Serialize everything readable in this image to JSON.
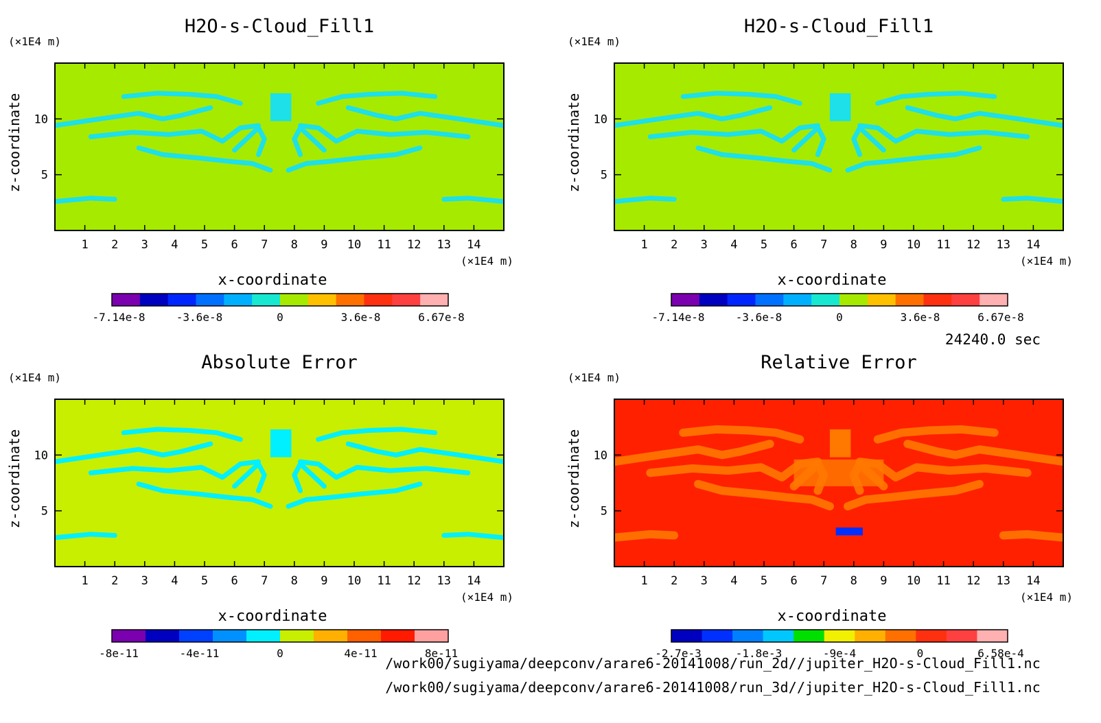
{
  "chart_data": [
    {
      "type": "heatmap",
      "title": "H2O-s-Cloud_Fill1",
      "xlabel": "x-coordinate",
      "ylabel": "z-coordinate",
      "xunit": "(×1E4 m)",
      "yunit": "(×1E4 m)",
      "xlim": [
        0,
        15
      ],
      "ylim": [
        0,
        15
      ],
      "xticks": [
        "1",
        "2",
        "3",
        "4",
        "5",
        "6",
        "7",
        "8",
        "9",
        "10",
        "11",
        "12",
        "13",
        "14"
      ],
      "yticks": [
        "5",
        "10"
      ],
      "background_color": "#a6ea00",
      "feature_color": "#1de0e8",
      "colorbar": {
        "colors": [
          "#7a00b0",
          "#0000c0",
          "#0026ff",
          "#0070ff",
          "#00b0ff",
          "#19e8d0",
          "#a6ea00",
          "#ffc000",
          "#ff7000",
          "#ff3010",
          "#ff4040",
          "#ffb0b0"
        ],
        "labels": [
          "-7.14e-8",
          "-3.6e-8",
          "0",
          "3.6e-8",
          "6.67e-8"
        ]
      }
    },
    {
      "type": "heatmap",
      "title": "H2O-s-Cloud_Fill1",
      "xlabel": "x-coordinate",
      "ylabel": "z-coordinate",
      "xunit": "(×1E4 m)",
      "yunit": "(×1E4 m)",
      "xlim": [
        0,
        15
      ],
      "ylim": [
        0,
        15
      ],
      "xticks": [
        "1",
        "2",
        "3",
        "4",
        "5",
        "6",
        "7",
        "8",
        "9",
        "10",
        "11",
        "12",
        "13",
        "14"
      ],
      "yticks": [
        "5",
        "10"
      ],
      "background_color": "#a6ea00",
      "feature_color": "#1de0e8",
      "colorbar": {
        "colors": [
          "#7a00b0",
          "#0000c0",
          "#0026ff",
          "#0070ff",
          "#00b0ff",
          "#19e8d0",
          "#a6ea00",
          "#ffc000",
          "#ff7000",
          "#ff3010",
          "#ff4040",
          "#ffb0b0"
        ],
        "labels": [
          "-7.14e-8",
          "-3.6e-8",
          "0",
          "3.6e-8",
          "6.67e-8"
        ]
      }
    },
    {
      "type": "heatmap",
      "title": "Absolute Error",
      "xlabel": "x-coordinate",
      "ylabel": "z-coordinate",
      "xunit": "(×1E4 m)",
      "yunit": "(×1E4 m)",
      "xlim": [
        0,
        15
      ],
      "ylim": [
        0,
        15
      ],
      "xticks": [
        "1",
        "2",
        "3",
        "4",
        "5",
        "6",
        "7",
        "8",
        "9",
        "10",
        "11",
        "12",
        "13",
        "14"
      ],
      "yticks": [
        "5",
        "10"
      ],
      "background_color": "#c8ee00",
      "feature_color": "#00f0ff",
      "colorbar": {
        "colors": [
          "#7a00b0",
          "#0000c0",
          "#0040ff",
          "#0090ff",
          "#00f0ff",
          "#c8ee00",
          "#ffb000",
          "#ff6000",
          "#ff1a00",
          "#ffa0a0"
        ],
        "labels": [
          "-8e-11",
          "-4e-11",
          "0",
          "4e-11",
          "8e-11"
        ]
      }
    },
    {
      "type": "heatmap",
      "title": "Relative Error",
      "xlabel": "x-coordinate",
      "ylabel": "z-coordinate",
      "xunit": "(×1E4 m)",
      "yunit": "(×1E4 m)",
      "xlim": [
        0,
        15
      ],
      "ylim": [
        0,
        15
      ],
      "xticks": [
        "1",
        "2",
        "3",
        "4",
        "5",
        "6",
        "7",
        "8",
        "9",
        "10",
        "11",
        "12",
        "13",
        "14"
      ],
      "yticks": [
        "5",
        "10"
      ],
      "background_color": "#ff2000",
      "feature_color": "#ff7800",
      "colorbar": {
        "colors": [
          "#0000c0",
          "#0030ff",
          "#0080ff",
          "#00c8ff",
          "#00e000",
          "#f0f000",
          "#ffb000",
          "#ff7000",
          "#ff3010",
          "#ff4040",
          "#ffb0b0"
        ],
        "labels": [
          "-2.7e-3",
          "-1.8e-3",
          "-9e-4",
          "0",
          "6.58e-4"
        ]
      }
    }
  ],
  "timestamp": "24240.0 sec",
  "footer": {
    "line1": "/work00/sugiyama/deepconv/arare6-20141008/run_2d//jupiter_H2O-s-Cloud_Fill1.nc",
    "line2": "/work00/sugiyama/deepconv/arare6-20141008/run_3d//jupiter_H2O-s-Cloud_Fill1.nc"
  }
}
